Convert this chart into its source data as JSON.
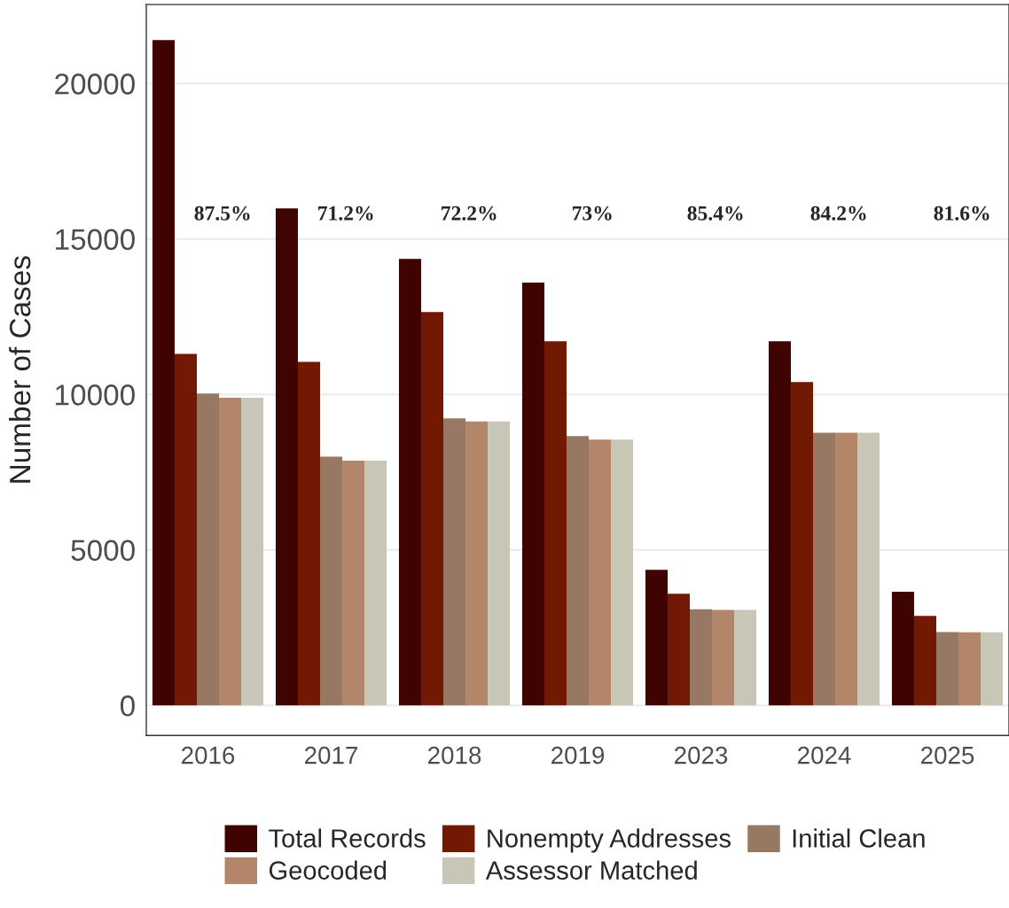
{
  "chart_data": {
    "type": "bar",
    "ylabel": "Number of Cases",
    "categories": [
      "2016",
      "2017",
      "2018",
      "2019",
      "2023",
      "2024",
      "2025"
    ],
    "series": [
      {
        "name": "Total Records",
        "color": "#3f0302",
        "values": [
          21400,
          15980,
          14360,
          13600,
          4360,
          11710,
          3650
        ]
      },
      {
        "name": "Nonempty Addresses",
        "color": "#721904",
        "values": [
          11300,
          11050,
          12650,
          11710,
          3590,
          10400,
          2880
        ]
      },
      {
        "name": "Initial Clean",
        "color": "#977963",
        "values": [
          10030,
          8000,
          9230,
          8660,
          3090,
          8770,
          2360
        ]
      },
      {
        "name": "Geocoded",
        "color": "#b3866a",
        "values": [
          9890,
          7870,
          9130,
          8550,
          3070,
          8770,
          2350
        ]
      },
      {
        "name": "Assessor Matched",
        "color": "#c8c6b6",
        "values": [
          9890,
          7870,
          9130,
          8550,
          3070,
          8770,
          2350
        ]
      }
    ],
    "annotations": [
      "87.5%",
      "71.2%",
      "72.2%",
      "73%",
      "85.4%",
      "84.2%",
      "81.6%"
    ],
    "ylim": [
      -970,
      22540
    ],
    "yticks": [
      0,
      5000,
      10000,
      15000,
      20000
    ],
    "grid": "y",
    "legend": "bottom"
  }
}
